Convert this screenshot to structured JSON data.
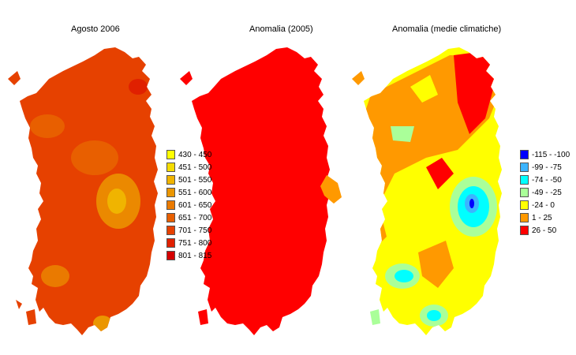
{
  "maps": [
    {
      "title": "Agosto 2006"
    },
    {
      "title": "Anomalia (2005)"
    },
    {
      "title": "Anomalia (medie climatiche)"
    }
  ],
  "legend_totals": {
    "items": [
      {
        "label": "430 - 450",
        "color": "#ffff00"
      },
      {
        "label": "451 - 500",
        "color": "#f5dc00"
      },
      {
        "label": "501 - 550",
        "color": "#f0b400"
      },
      {
        "label": "551 - 600",
        "color": "#eb9600"
      },
      {
        "label": "601 - 650",
        "color": "#ea7a00"
      },
      {
        "label": "651 - 700",
        "color": "#e85f00"
      },
      {
        "label": "701 - 750",
        "color": "#e64100"
      },
      {
        "label": "751 - 800",
        "color": "#e02000"
      },
      {
        "label": "801 - 815",
        "color": "#d40000"
      }
    ]
  },
  "legend_anomaly": {
    "items": [
      {
        "label": "-115 - -100",
        "color": "#0000ff"
      },
      {
        "label": "-99 - -75",
        "color": "#3cb4ff"
      },
      {
        "label": "-74 - -50",
        "color": "#00ffff"
      },
      {
        "label": "-49 - -25",
        "color": "#aaff99"
      },
      {
        "label": "-24 - 0",
        "color": "#ffff00"
      },
      {
        "label": "1 - 25",
        "color": "#ff9900"
      },
      {
        "label": "26 - 50",
        "color": "#ff0000"
      }
    ]
  }
}
